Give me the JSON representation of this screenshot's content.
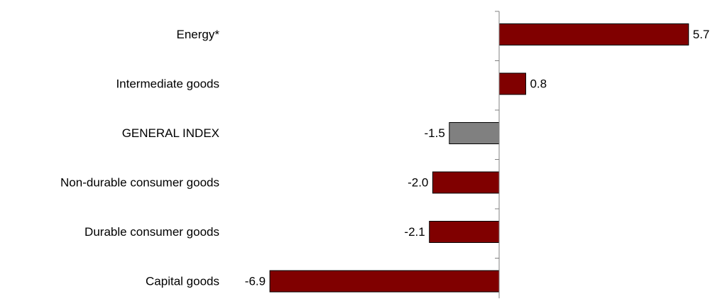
{
  "chart_data": {
    "type": "bar",
    "orientation": "horizontal",
    "categories": [
      "Energy*",
      "Intermediate goods",
      "GENERAL INDEX",
      "Non-durable consumer goods",
      "Durable consumer goods",
      "Capital goods"
    ],
    "values": [
      5.7,
      0.8,
      -1.5,
      -2.0,
      -2.1,
      -6.9
    ],
    "value_labels": [
      "5.7",
      "0.8",
      "-1.5",
      "-2.0",
      "-2.1",
      "-6.9"
    ],
    "xlim": [
      -6.9,
      5.7
    ],
    "grid": false,
    "legend": "none",
    "colors": {
      "default_bar": "#800000",
      "highlight_bar": "#808080",
      "highlight_category": "GENERAL INDEX",
      "bar_outline": "#000000",
      "axis": "#808080"
    }
  }
}
